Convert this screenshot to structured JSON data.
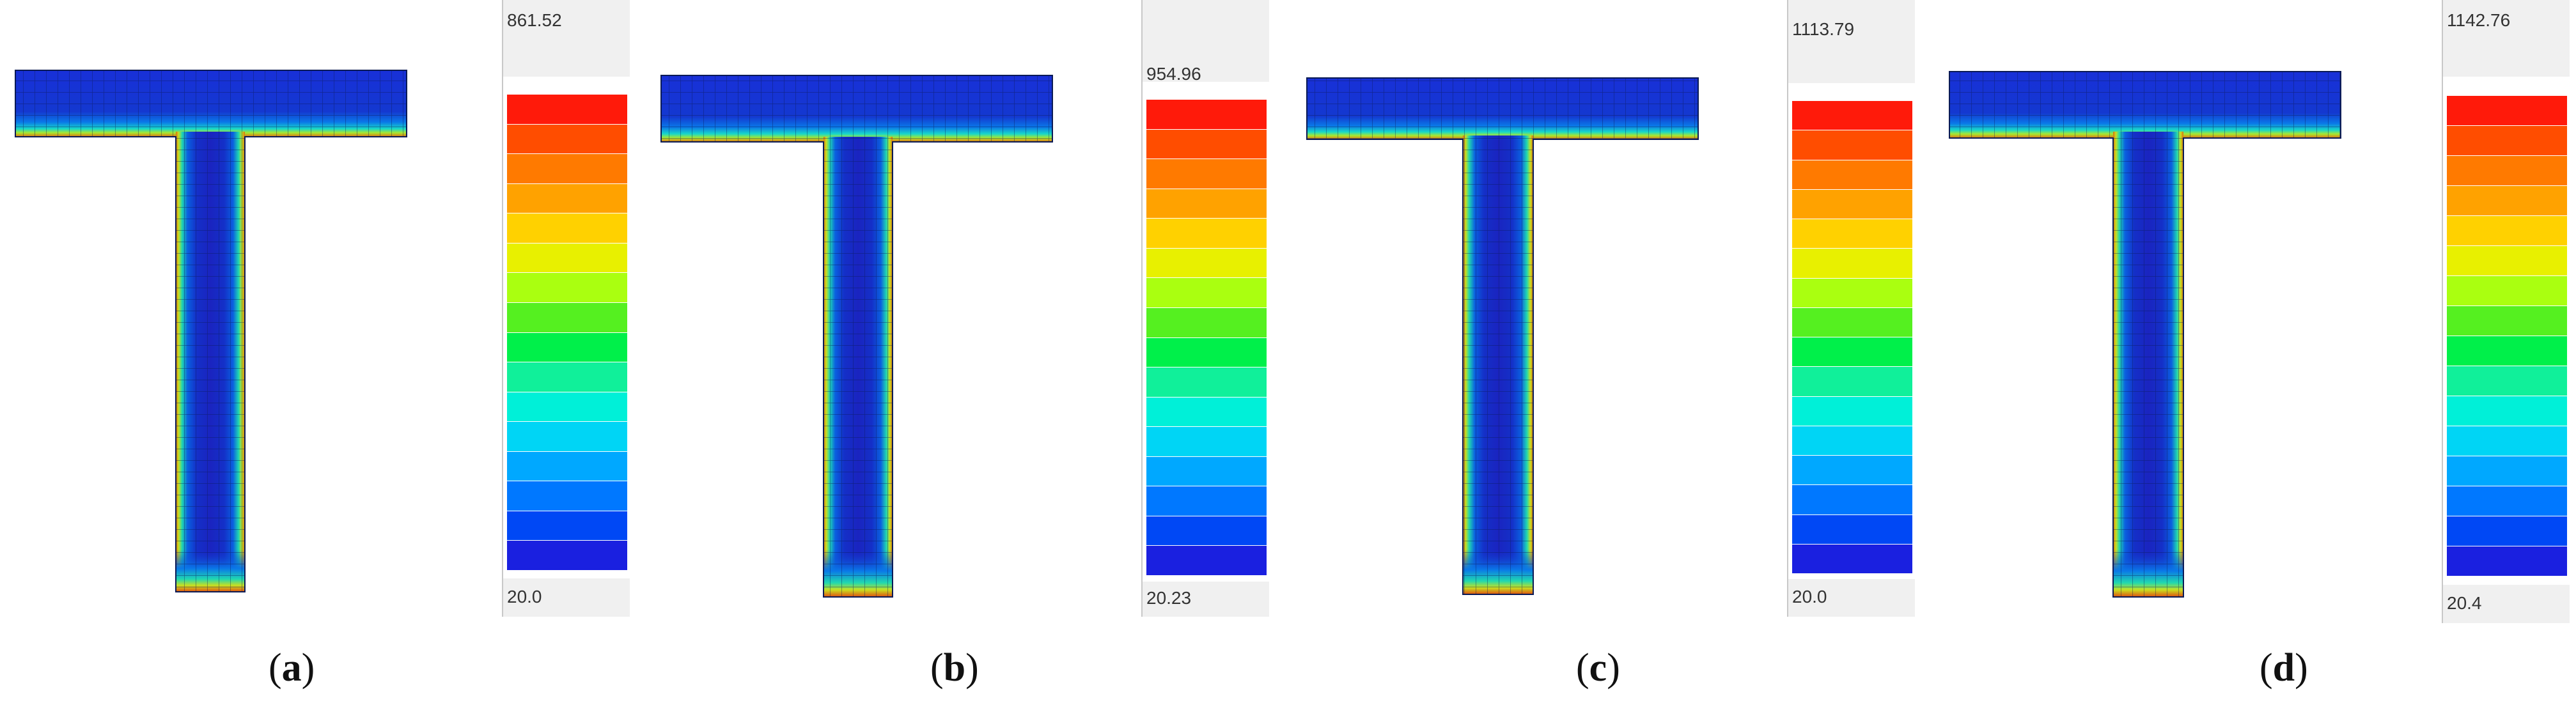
{
  "colorbar": {
    "band_colors": [
      "#ff1a0a",
      "#ff4d00",
      "#ff7a00",
      "#ffa200",
      "#ffd100",
      "#e8f000",
      "#aaff10",
      "#55f020",
      "#00f04a",
      "#10f09a",
      "#00f0d8",
      "#00d5f5",
      "#00a8ff",
      "#0078ff",
      "#0048f5",
      "#1a20e0"
    ]
  },
  "panels": [
    {
      "id": "a",
      "caption_letter": "a",
      "max_value": "861.52",
      "min_value": "20.0"
    },
    {
      "id": "b",
      "caption_letter": "b",
      "max_value": "954.96",
      "min_value": "20.23"
    },
    {
      "id": "c",
      "caption_letter": "c",
      "max_value": "1113.79",
      "min_value": "20.0"
    },
    {
      "id": "d",
      "caption_letter": "d",
      "max_value": "1142.76",
      "min_value": "20.4"
    }
  ]
}
